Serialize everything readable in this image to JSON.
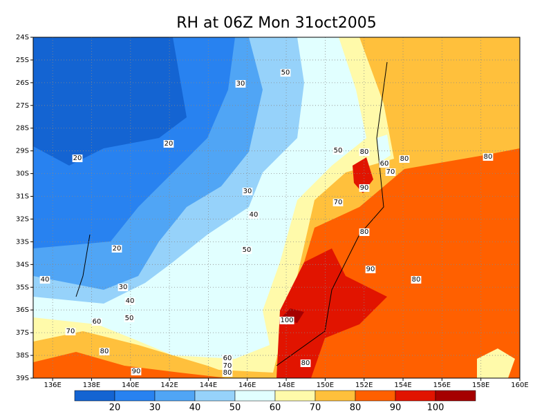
{
  "title": "RH at 06Z Mon 31oct2005",
  "map": {
    "xlim": [
      135,
      160
    ],
    "ylim": [
      -39,
      -24
    ],
    "grid": true,
    "xticks": [
      {
        "value": 136,
        "label": "136E"
      },
      {
        "value": 138,
        "label": "138E"
      },
      {
        "value": 140,
        "label": "140E"
      },
      {
        "value": 142,
        "label": "142E"
      },
      {
        "value": 144,
        "label": "144E"
      },
      {
        "value": 146,
        "label": "146E"
      },
      {
        "value": 148,
        "label": "148E"
      },
      {
        "value": 150,
        "label": "150E"
      },
      {
        "value": 152,
        "label": "152E"
      },
      {
        "value": 154,
        "label": "154E"
      },
      {
        "value": 156,
        "label": "156E"
      },
      {
        "value": 158,
        "label": "158E"
      },
      {
        "value": 160,
        "label": "160E"
      }
    ],
    "yticks": [
      {
        "value": -24,
        "label": "24S"
      },
      {
        "value": -25,
        "label": "25S"
      },
      {
        "value": -26,
        "label": "26S"
      },
      {
        "value": -27,
        "label": "27S"
      },
      {
        "value": -28,
        "label": "28S"
      },
      {
        "value": -29,
        "label": "29S"
      },
      {
        "value": -30,
        "label": "30S"
      },
      {
        "value": -31,
        "label": "31S"
      },
      {
        "value": -32,
        "label": "32S"
      },
      {
        "value": -33,
        "label": "33S"
      },
      {
        "value": -34,
        "label": "34S"
      },
      {
        "value": -35,
        "label": "35S"
      },
      {
        "value": -36,
        "label": "36S"
      },
      {
        "value": -37,
        "label": "37S"
      },
      {
        "value": -38,
        "label": "38S"
      },
      {
        "value": -39,
        "label": "39S"
      }
    ],
    "contour_labels": [
      50,
      30,
      20,
      20,
      50,
      80,
      60,
      70,
      80,
      80,
      90,
      30,
      70,
      40,
      80,
      50,
      20,
      90,
      80,
      40,
      30,
      40,
      50,
      100,
      60,
      70,
      80,
      80,
      60,
      70,
      90,
      80
    ]
  },
  "colorbar": {
    "levels": [
      20,
      30,
      40,
      50,
      60,
      70,
      80,
      90,
      100
    ],
    "colors": [
      "#1464d2",
      "#2882f0",
      "#50a5f5",
      "#96d2fa",
      "#e1ffff",
      "#fffaaa",
      "#ffc03c",
      "#ff6000",
      "#e11400",
      "#a50000"
    ]
  }
}
